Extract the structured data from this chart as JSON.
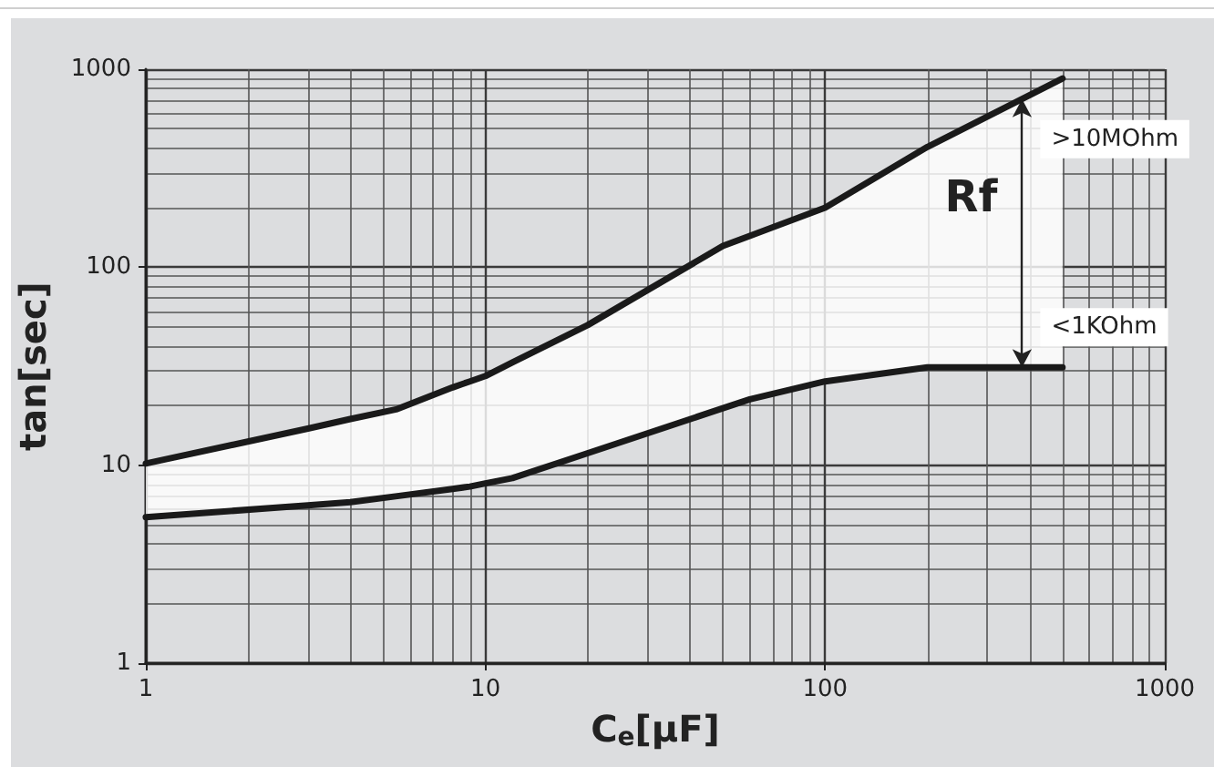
{
  "chart_data": {
    "type": "line",
    "xlabel": "C$_{e}$[μF]",
    "ylabel": "tan[sec]",
    "log": "xy",
    "xlim": [
      1,
      1000
    ],
    "ylim": [
      1,
      1000
    ],
    "xticks": [
      1,
      10,
      100,
      1000
    ],
    "yticks": [
      1,
      10,
      100,
      1000
    ],
    "grid": true,
    "marker": "none",
    "line_style": "solid",
    "x": [
      1,
      3,
      4,
      5.5,
      8,
      9,
      10,
      12,
      20,
      50,
      60,
      100,
      200,
      500
    ],
    "series": [
      {
        "color": "#1a1a1a",
        "values": [
          10.2,
          15.3,
          17.1,
          19.2,
          24.7,
          26.5,
          28.2,
          33,
          51,
          128,
          144,
          200,
          405,
          898
        ],
        "lower": [
          5.46,
          6.27,
          6.5,
          6.98,
          7.59,
          7.8,
          8.1,
          8.6,
          11.5,
          19.4,
          21.5,
          26.5,
          31.2,
          31.2
        ],
        "upper": [
          10.2,
          15.3,
          17.1,
          19.2,
          24.7,
          26.5,
          28.2,
          33,
          51,
          128,
          144,
          200,
          405,
          898
        ]
      },
      {
        "color": "#1a1a1a",
        "values": [
          5.46,
          6.27,
          6.5,
          6.98,
          7.59,
          7.8,
          8.1,
          8.6,
          11.5,
          19.4,
          21.5,
          26.5,
          31.2,
          31.2
        ]
      }
    ],
    "annotations": [
      "Rf",
      {
        "text": ">10MOhm",
        "x": 380,
        "y": 706
      },
      {
        "text": "<1KOhm",
        "x": 380,
        "y": 31.2
      }
    ]
  }
}
